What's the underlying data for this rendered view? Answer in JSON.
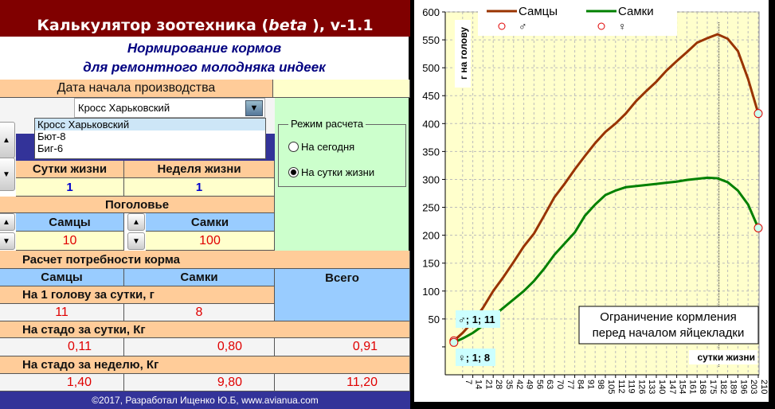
{
  "header": {
    "title": "Калькулятор зоотехника (beta ), v-1.1",
    "title_main": "Калькулятор зоотехника (",
    "title_beta": "beta",
    "title_tail": " ), v-1.1",
    "subtitle1": "Нормирование кормов",
    "subtitle2": "для ремонтного молодняка индеек"
  },
  "start_date": {
    "label": "Дата начала производства"
  },
  "cross": {
    "selected": "Кросс Харьковский",
    "options": [
      "Кросс Харьковский",
      "Бют-8",
      "Биг-6"
    ]
  },
  "mode": {
    "title": "Режим расчета",
    "options": [
      {
        "label": "На сегодня",
        "checked": false
      },
      {
        "label": "На сутки жизни",
        "checked": true
      }
    ]
  },
  "age": {
    "day_label": "Сутки жизни",
    "week_label": "Неделя жизни",
    "day": "1",
    "week": "1"
  },
  "herd": {
    "label": "Поголовье",
    "males_label": "Самцы",
    "females_label": "Самки",
    "males": "10",
    "females": "100"
  },
  "feed": {
    "label": "Расчет потребности корма",
    "males_label": "Самцы",
    "females_label": "Самки",
    "total_label": "Всего",
    "per_head_label": "На 1 голову за сутки, г",
    "per_head": {
      "males": "11",
      "females": "8"
    },
    "per_day_label": "На стадо за сутки, Кг",
    "per_day": {
      "males": "0,11",
      "females": "0,80",
      "total": "0,91"
    },
    "per_week_label": "На стадо за неделю, Кг",
    "per_week": {
      "males": "1,40",
      "females": "9,80",
      "total": "11,20"
    }
  },
  "footer": "©2017, Разработал Ищенко Ю.Б, www.avianua.com",
  "colors": {
    "header": "#800000",
    "peach": "#FFCC99",
    "blue": "#99CCFF",
    "navy": "#333399",
    "male": "#993300",
    "female": "#008000",
    "plot": "#FFFFCC"
  },
  "chart_data": {
    "type": "line",
    "ylabel": "г на голову",
    "xlabel": "сутки жизни",
    "ylim": [
      -50,
      600
    ],
    "yticks": [
      50,
      100,
      150,
      200,
      250,
      300,
      350,
      400,
      450,
      500,
      550,
      600
    ],
    "xticks": [
      7,
      14,
      21,
      28,
      35,
      42,
      49,
      56,
      63,
      70,
      77,
      84,
      91,
      98,
      105,
      112,
      119,
      126,
      133,
      140,
      147,
      154,
      161,
      168,
      175,
      182,
      189,
      196,
      203,
      210
    ],
    "x": [
      1,
      7,
      14,
      21,
      28,
      35,
      42,
      49,
      56,
      63,
      70,
      77,
      84,
      91,
      98,
      105,
      112,
      119,
      126,
      133,
      140,
      147,
      154,
      161,
      168,
      175,
      182,
      189,
      196,
      203,
      210
    ],
    "series": [
      {
        "name": "Самцы",
        "color": "#993300",
        "values": [
          11,
          25,
          45,
          70,
          100,
          125,
          152,
          180,
          203,
          235,
          268,
          292,
          318,
          342,
          365,
          385,
          400,
          418,
          440,
          458,
          475,
          495,
          512,
          528,
          545,
          553,
          560,
          552,
          530,
          480,
          418
        ]
      },
      {
        "name": "Самки",
        "color": "#008000",
        "values": [
          8,
          15,
          25,
          38,
          55,
          70,
          85,
          100,
          118,
          140,
          165,
          185,
          205,
          235,
          255,
          272,
          280,
          286,
          288,
          290,
          292,
          294,
          296,
          299,
          301,
          303,
          302,
          295,
          280,
          255,
          213
        ]
      }
    ],
    "marker_legend": [
      "♂",
      "♀"
    ],
    "current_day": 183,
    "labels": {
      "male_point": "♂; 1; 11",
      "female_point": "♀; 1; 8"
    },
    "annotation": [
      "Ограничение кормления",
      "перед началом яйцекладки"
    ],
    "grid": true,
    "legend": "top"
  }
}
